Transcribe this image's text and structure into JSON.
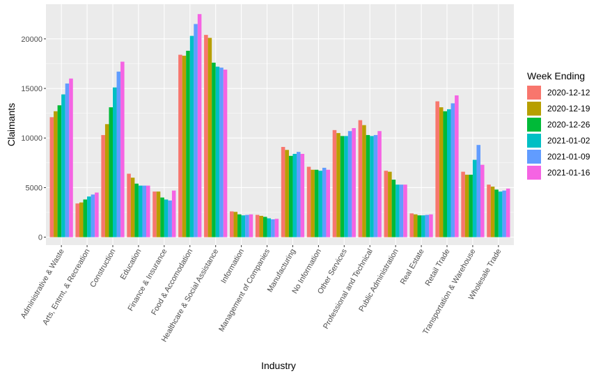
{
  "chart_data": {
    "type": "bar",
    "title": "",
    "xlabel": "Industry",
    "ylabel": "Claimants",
    "ylim": [
      -800,
      23500
    ],
    "yticks": [
      0,
      5000,
      10000,
      15000,
      20000
    ],
    "ytick_labels": [
      "0",
      "5000",
      "10000",
      "15000",
      "20000"
    ],
    "grid": true,
    "legend_position": "right",
    "legend_title": "Week Ending",
    "categories": [
      "Administrative & Waste",
      "Arts, Entmt, & Recreation",
      "Construction",
      "Education",
      "Finance & Insurance",
      "Food & Accomodation",
      "Healthcare & Social Assistance",
      "Information",
      "Management of Companies",
      "Manufacturing",
      "No Information",
      "Other Services",
      "Professional and Technical",
      "Public Administration",
      "Real Estate",
      "Retail Trade",
      "Transportation & Warehouse",
      "Wholesale Trade"
    ],
    "series": [
      {
        "name": "2020-12-12",
        "color": "#F8766D",
        "values": [
          12100,
          3400,
          10300,
          6400,
          4600,
          18400,
          20400,
          2600,
          2250,
          9100,
          7100,
          10800,
          11800,
          6700,
          2400,
          13700,
          6600,
          5300
        ]
      },
      {
        "name": "2020-12-19",
        "color": "#B79F00",
        "values": [
          12700,
          3500,
          11400,
          6000,
          4600,
          18300,
          20100,
          2550,
          2150,
          8800,
          6800,
          10500,
          11300,
          6600,
          2300,
          13100,
          6300,
          5100
        ]
      },
      {
        "name": "2020-12-26",
        "color": "#00BA38",
        "values": [
          13300,
          3800,
          13100,
          5400,
          4000,
          18800,
          17600,
          2300,
          2050,
          8200,
          6800,
          10200,
          10300,
          5800,
          2200,
          12700,
          6300,
          4800
        ]
      },
      {
        "name": "2021-01-02",
        "color": "#00BFC4",
        "values": [
          14400,
          4100,
          15100,
          5200,
          3800,
          20300,
          17200,
          2200,
          1900,
          8400,
          6700,
          10200,
          10200,
          5300,
          2200,
          12900,
          7800,
          4600
        ]
      },
      {
        "name": "2021-01-09",
        "color": "#619CFF",
        "values": [
          15500,
          4300,
          16700,
          5200,
          3700,
          21500,
          17100,
          2250,
          1800,
          8600,
          7000,
          10700,
          10300,
          5300,
          2250,
          13500,
          9300,
          4700
        ]
      },
      {
        "name": "2021-01-16",
        "color": "#F564E3",
        "values": [
          16000,
          4500,
          17700,
          5200,
          4700,
          22500,
          16900,
          2300,
          1850,
          8400,
          6800,
          11000,
          10700,
          5300,
          2300,
          14300,
          7300,
          4900
        ]
      }
    ]
  }
}
